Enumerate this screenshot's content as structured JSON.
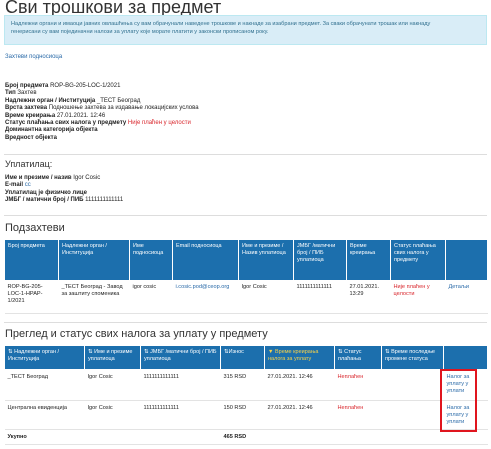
{
  "page": {
    "title": "Сви трошкови за предмет",
    "info_line1": "Надлежни органи и имаоци јавних овлашћења су вам обрачунали наведене трошкове и накнаде за изабрани предмет. За сваки обрачунати трошак или накнаду",
    "info_line2": "генерисани су вам појединачни налози за уплату које морате платити у законски прописаном року.",
    "requests_link": "Захтеви подносиоца"
  },
  "details": {
    "case_no_label": "Број предмета",
    "case_no": "ROP-BG-205-LOC-1/2021",
    "type_label": "Тип",
    "type": "Захтев",
    "authority_label": "Надлежни орган / Институција",
    "authority": "_ТЕСТ Београд",
    "request_type_label": "Врста захтева",
    "request_type": "Подношење захтева за издавање локацијских услова",
    "created_label": "Време креирања",
    "created": "27.01.2021. 12:46",
    "status_label": "Статус плаћања свих налога у предмету",
    "status": "Није плаћен у целости",
    "category_label": "Доминантна категорија објекта",
    "category": "",
    "value_label": "Вредност објекта",
    "value": ""
  },
  "payer": {
    "section_title": "Уплатилац:",
    "name_label": "Име и презиме / назив",
    "name": "Igor Cosic",
    "email_label": "E-mail",
    "email": "cc",
    "entity_label": "Уплатилац је физичко лице",
    "jmbg_label": "ЈМБГ / матични број / ПИБ",
    "jmbg": "1111111111111"
  },
  "subrequests": {
    "section_title": "Подзахтеви",
    "columns": [
      "Број предмета",
      "Надлежни орган / Институција",
      "Име подносиоца",
      "Email подносиоца",
      "Име и презиме / Назив уплатиоца",
      "ЈМБГ /матични број / ПИБ уплатиоца",
      "Време креирања",
      "Статус плаћања свих налога у предмету",
      ""
    ],
    "rows": [
      {
        "case_no": "ROP-BG-205-LOC-1-HPAP-1/2021",
        "authority": "_ТЕСТ Београд - Завод за заштиту споменика",
        "applicant": "igor cosic",
        "email": "i.cosic.pod@ceop.org",
        "payer": "Igor Cosic",
        "jmbg": "1111111111111",
        "created": "27.01.2021. 13:29",
        "status": "Није плаћен у целости",
        "action": "Детаљи"
      }
    ]
  },
  "orders": {
    "section_title": "Преглед и статус свих налога за уплату у предмету",
    "columns": [
      "Надлежни орган / Институција",
      "Име и презиме уплатиоца",
      "ЈМБГ /матични број / ПИБ уплатиоца",
      "Износ",
      "Време креирања налога за уплату",
      "Статус плаћања",
      "Време последње промене статуса",
      ""
    ],
    "rows": [
      {
        "authority": "_ТЕСТ Београд",
        "payer": "Igor Cosic",
        "jmbg": "1111111111111",
        "amount": "315 RSD",
        "created": "27.01.2021. 12:46",
        "status": "Неплаћен",
        "changed": "",
        "action": "Налог за уплату у уплати"
      },
      {
        "authority": "Централна евиденција",
        "payer": "Igor Cosic",
        "jmbg": "1111111111111",
        "amount": "150 RSD",
        "created": "27.01.2021. 12:46",
        "status": "Неплаћен",
        "changed": "",
        "action": "Налог за уплату у уплати"
      }
    ],
    "total_label": "Укупно",
    "total": "465 RSD"
  }
}
